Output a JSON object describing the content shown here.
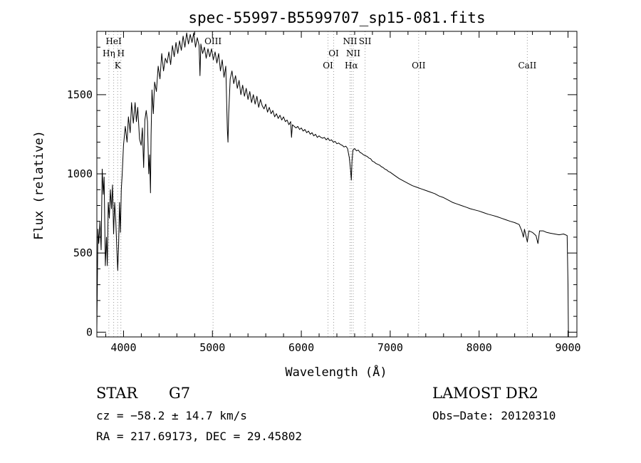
{
  "chart_data": {
    "type": "line",
    "title": "spec-55997-B5599707_sp15-081.fits",
    "xlabel": "Wavelength (Å)",
    "ylabel": "Flux (relative)",
    "xlim": [
      3700,
      9100
    ],
    "ylim": [
      -30,
      1900
    ],
    "xticks": [
      4000,
      5000,
      6000,
      7000,
      8000,
      9000
    ],
    "yticks": [
      0,
      500,
      1000,
      1500
    ],
    "grid": false,
    "series": [
      {
        "values": [
          [
            3700,
            30
          ],
          [
            3712,
            650
          ],
          [
            3722,
            560
          ],
          [
            3735,
            700
          ],
          [
            3748,
            520
          ],
          [
            3760,
            1030
          ],
          [
            3772,
            870
          ],
          [
            3782,
            980
          ],
          [
            3795,
            420
          ],
          [
            3808,
            600
          ],
          [
            3818,
            420
          ],
          [
            3828,
            820
          ],
          [
            3840,
            720
          ],
          [
            3852,
            900
          ],
          [
            3864,
            780
          ],
          [
            3876,
            930
          ],
          [
            3888,
            620
          ],
          [
            3900,
            820
          ],
          [
            3913,
            700
          ],
          [
            3925,
            520
          ],
          [
            3935,
            390
          ],
          [
            3945,
            560
          ],
          [
            3955,
            820
          ],
          [
            3965,
            630
          ],
          [
            3975,
            900
          ],
          [
            3985,
            1000
          ],
          [
            4000,
            1180
          ],
          [
            4020,
            1300
          ],
          [
            4040,
            1200
          ],
          [
            4055,
            1360
          ],
          [
            4075,
            1260
          ],
          [
            4090,
            1450
          ],
          [
            4110,
            1320
          ],
          [
            4130,
            1450
          ],
          [
            4145,
            1330
          ],
          [
            4160,
            1420
          ],
          [
            4180,
            1220
          ],
          [
            4198,
            1180
          ],
          [
            4212,
            1290
          ],
          [
            4226,
            1040
          ],
          [
            4240,
            1340
          ],
          [
            4255,
            1400
          ],
          [
            4270,
            1330
          ],
          [
            4283,
            1000
          ],
          [
            4293,
            1120
          ],
          [
            4303,
            880
          ],
          [
            4310,
            1240
          ],
          [
            4320,
            1530
          ],
          [
            4335,
            1380
          ],
          [
            4350,
            1580
          ],
          [
            4370,
            1520
          ],
          [
            4390,
            1680
          ],
          [
            4410,
            1600
          ],
          [
            4430,
            1760
          ],
          [
            4450,
            1650
          ],
          [
            4470,
            1730
          ],
          [
            4490,
            1700
          ],
          [
            4510,
            1770
          ],
          [
            4530,
            1690
          ],
          [
            4550,
            1810
          ],
          [
            4570,
            1740
          ],
          [
            4590,
            1830
          ],
          [
            4610,
            1760
          ],
          [
            4630,
            1840
          ],
          [
            4650,
            1780
          ],
          [
            4670,
            1870
          ],
          [
            4690,
            1800
          ],
          [
            4710,
            1890
          ],
          [
            4730,
            1820
          ],
          [
            4750,
            1880
          ],
          [
            4770,
            1830
          ],
          [
            4790,
            1890
          ],
          [
            4810,
            1800
          ],
          [
            4830,
            1860
          ],
          [
            4850,
            1810
          ],
          [
            4860,
            1620
          ],
          [
            4870,
            1820
          ],
          [
            4890,
            1760
          ],
          [
            4910,
            1800
          ],
          [
            4930,
            1730
          ],
          [
            4950,
            1790
          ],
          [
            4970,
            1740
          ],
          [
            4990,
            1790
          ],
          [
            5010,
            1720
          ],
          [
            5030,
            1770
          ],
          [
            5050,
            1700
          ],
          [
            5070,
            1760
          ],
          [
            5090,
            1650
          ],
          [
            5110,
            1720
          ],
          [
            5130,
            1610
          ],
          [
            5150,
            1680
          ],
          [
            5168,
            1280
          ],
          [
            5175,
            1200
          ],
          [
            5183,
            1380
          ],
          [
            5200,
            1600
          ],
          [
            5220,
            1650
          ],
          [
            5240,
            1570
          ],
          [
            5260,
            1620
          ],
          [
            5280,
            1540
          ],
          [
            5300,
            1590
          ],
          [
            5320,
            1500
          ],
          [
            5340,
            1560
          ],
          [
            5360,
            1490
          ],
          [
            5380,
            1540
          ],
          [
            5400,
            1470
          ],
          [
            5420,
            1520
          ],
          [
            5440,
            1450
          ],
          [
            5460,
            1500
          ],
          [
            5480,
            1440
          ],
          [
            5500,
            1490
          ],
          [
            5520,
            1420
          ],
          [
            5540,
            1470
          ],
          [
            5560,
            1430
          ],
          [
            5580,
            1410
          ],
          [
            5600,
            1440
          ],
          [
            5620,
            1390
          ],
          [
            5640,
            1420
          ],
          [
            5660,
            1380
          ],
          [
            5680,
            1400
          ],
          [
            5700,
            1360
          ],
          [
            5720,
            1380
          ],
          [
            5740,
            1350
          ],
          [
            5760,
            1370
          ],
          [
            5780,
            1340
          ],
          [
            5800,
            1360
          ],
          [
            5820,
            1330
          ],
          [
            5840,
            1340
          ],
          [
            5860,
            1310
          ],
          [
            5880,
            1330
          ],
          [
            5890,
            1230
          ],
          [
            5900,
            1310
          ],
          [
            5920,
            1300
          ],
          [
            5940,
            1290
          ],
          [
            5960,
            1300
          ],
          [
            5980,
            1280
          ],
          [
            6000,
            1290
          ],
          [
            6020,
            1270
          ],
          [
            6040,
            1280
          ],
          [
            6060,
            1260
          ],
          [
            6080,
            1270
          ],
          [
            6100,
            1250
          ],
          [
            6120,
            1260
          ],
          [
            6140,
            1240
          ],
          [
            6160,
            1250
          ],
          [
            6180,
            1230
          ],
          [
            6200,
            1240
          ],
          [
            6220,
            1230
          ],
          [
            6240,
            1225
          ],
          [
            6260,
            1230
          ],
          [
            6280,
            1215
          ],
          [
            6300,
            1225
          ],
          [
            6320,
            1210
          ],
          [
            6340,
            1215
          ],
          [
            6360,
            1200
          ],
          [
            6380,
            1205
          ],
          [
            6400,
            1190
          ],
          [
            6420,
            1195
          ],
          [
            6440,
            1185
          ],
          [
            6460,
            1180
          ],
          [
            6480,
            1170
          ],
          [
            6500,
            1175
          ],
          [
            6520,
            1160
          ],
          [
            6540,
            1100
          ],
          [
            6555,
            1020
          ],
          [
            6563,
            960
          ],
          [
            6570,
            1080
          ],
          [
            6580,
            1150
          ],
          [
            6600,
            1160
          ],
          [
            6620,
            1145
          ],
          [
            6640,
            1150
          ],
          [
            6660,
            1135
          ],
          [
            6680,
            1130
          ],
          [
            6700,
            1120
          ],
          [
            6720,
            1115
          ],
          [
            6740,
            1110
          ],
          [
            6760,
            1100
          ],
          [
            6780,
            1095
          ],
          [
            6800,
            1080
          ],
          [
            6820,
            1075
          ],
          [
            6840,
            1065
          ],
          [
            6860,
            1060
          ],
          [
            6880,
            1055
          ],
          [
            6900,
            1045
          ],
          [
            6920,
            1040
          ],
          [
            6940,
            1030
          ],
          [
            6960,
            1025
          ],
          [
            6980,
            1015
          ],
          [
            7000,
            1010
          ],
          [
            7050,
            990
          ],
          [
            7100,
            970
          ],
          [
            7150,
            955
          ],
          [
            7200,
            940
          ],
          [
            7250,
            925
          ],
          [
            7300,
            915
          ],
          [
            7350,
            905
          ],
          [
            7400,
            895
          ],
          [
            7450,
            885
          ],
          [
            7500,
            875
          ],
          [
            7550,
            860
          ],
          [
            7600,
            850
          ],
          [
            7650,
            835
          ],
          [
            7700,
            820
          ],
          [
            7750,
            810
          ],
          [
            7800,
            800
          ],
          [
            7850,
            790
          ],
          [
            7900,
            780
          ],
          [
            7950,
            772
          ],
          [
            8000,
            765
          ],
          [
            8050,
            755
          ],
          [
            8100,
            745
          ],
          [
            8150,
            738
          ],
          [
            8200,
            730
          ],
          [
            8250,
            720
          ],
          [
            8300,
            710
          ],
          [
            8350,
            700
          ],
          [
            8400,
            692
          ],
          [
            8450,
            680
          ],
          [
            8480,
            640
          ],
          [
            8498,
            600
          ],
          [
            8510,
            650
          ],
          [
            8542,
            570
          ],
          [
            8560,
            640
          ],
          [
            8600,
            630
          ],
          [
            8640,
            610
          ],
          [
            8662,
            560
          ],
          [
            8680,
            640
          ],
          [
            8720,
            640
          ],
          [
            8760,
            630
          ],
          [
            8800,
            625
          ],
          [
            8850,
            620
          ],
          [
            8900,
            615
          ],
          [
            8950,
            620
          ],
          [
            8990,
            610
          ],
          [
            9000,
            300
          ],
          [
            9005,
            -30
          ]
        ]
      }
    ],
    "annotations": [
      {
        "label": "HeI",
        "x": 3889,
        "row": 0
      },
      {
        "label": "Hη",
        "x": 3835,
        "row": 1
      },
      {
        "label": "H",
        "x": 3970,
        "row": 1
      },
      {
        "label": "K",
        "x": 3934,
        "row": 2
      },
      {
        "label": "OIII",
        "x": 5007,
        "row": 0
      },
      {
        "label": "OI",
        "x": 6364,
        "row": 1
      },
      {
        "label": "OI",
        "x": 6300,
        "row": 2
      },
      {
        "label": "NII",
        "x": 6548,
        "row": 0
      },
      {
        "label": "SII",
        "x": 6717,
        "row": 0
      },
      {
        "label": "NII",
        "x": 6584,
        "row": 1
      },
      {
        "label": "Hα",
        "x": 6563,
        "row": 2
      },
      {
        "label": "OII",
        "x": 7320,
        "row": 2
      },
      {
        "label": "CaII",
        "x": 8542,
        "row": 2
      }
    ],
    "line_marks": [
      3835,
      3889,
      3934,
      3970,
      5007,
      6300,
      6364,
      6548,
      6563,
      6584,
      6717,
      7320,
      8542
    ]
  },
  "info": {
    "object_type": "STAR",
    "subclass": "G7",
    "survey": "LAMOST DR2",
    "cz": "cz = −58.2 ± 14.7 km/s",
    "obs_date": "Obs−Date: 20120310",
    "ra_dec": "RA = 217.69173, DEC =  29.45802"
  },
  "colors": {
    "axis": "#000000",
    "line": "#000000",
    "markers": "#9a9a9a"
  }
}
